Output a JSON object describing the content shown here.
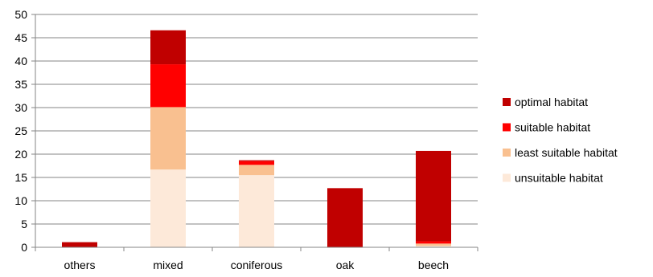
{
  "chart_data": {
    "type": "bar",
    "stacked": true,
    "categories": [
      "others",
      "mixed",
      "coniferous",
      "oak",
      "beech"
    ],
    "series": [
      {
        "name": "unsuitable habitat",
        "color": "#FDE9D9",
        "values": [
          0,
          16.7,
          15.5,
          0,
          0.3
        ]
      },
      {
        "name": "least suitable habitat",
        "color": "#F9C090",
        "values": [
          0,
          13.4,
          2.2,
          0,
          0.5
        ]
      },
      {
        "name": "suitable habitat",
        "color": "#FF0000",
        "values": [
          0,
          9.2,
          0.8,
          0,
          0.5
        ]
      },
      {
        "name": "optimal habitat",
        "color": "#C00000",
        "values": [
          1.1,
          7.3,
          0.2,
          12.7,
          19.4
        ]
      }
    ],
    "legend_order": [
      "optimal habitat",
      "suitable habitat",
      "least suitable habitat",
      "unsuitable habitat"
    ],
    "legend_position": "right",
    "ylim": [
      0,
      50
    ],
    "yticks": [
      "0",
      "5",
      "10",
      "15",
      "20",
      "25",
      "30",
      "35",
      "40",
      "45",
      "50"
    ],
    "grid": true,
    "gridline_color": "#868686",
    "xlabel": "",
    "ylabel": "",
    "title": ""
  }
}
